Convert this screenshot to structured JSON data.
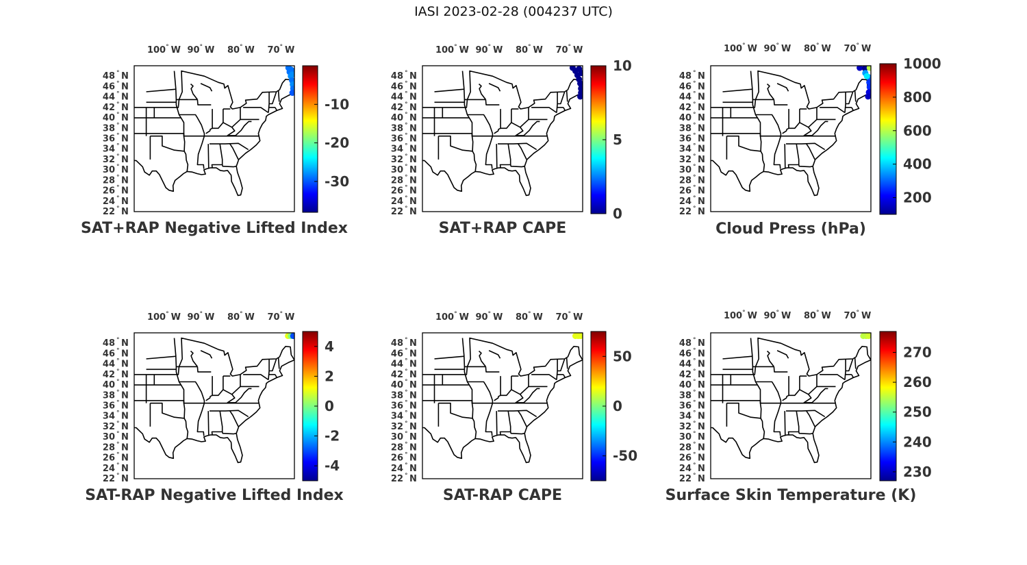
{
  "figure": {
    "title": "IASI 2023-02-28 (004237 UTC)"
  },
  "colormap": [
    "#00008f",
    "#0000ff",
    "#0080ff",
    "#00ffff",
    "#80ff80",
    "#ffff00",
    "#ff8000",
    "#ff0000",
    "#800000"
  ],
  "lon_ticks": [
    "100",
    "90",
    "80",
    "70"
  ],
  "lat_ticks": [
    "48",
    "46",
    "44",
    "42",
    "40",
    "38",
    "36",
    "34",
    "32",
    "30",
    "28",
    "26",
    "24",
    "22"
  ],
  "deg_symbol": "°",
  "lon_suffix": "W",
  "lat_suffix": "N",
  "chart_data": [
    {
      "type": "scatter",
      "title": "SAT+RAP Negative Lifted Index",
      "xlim": [
        -107,
        -67
      ],
      "ylim": [
        22,
        50
      ],
      "clim": [
        -38,
        0
      ],
      "colorbar_ticks": [
        -10,
        -20,
        -30
      ],
      "points": [
        {
          "lon": -68.5,
          "lat": 49.6,
          "value": -29
        },
        {
          "lon": -68.2,
          "lat": 48.8,
          "value": -29
        },
        {
          "lon": -67.9,
          "lat": 48.0,
          "value": -28
        },
        {
          "lon": -67.6,
          "lat": 47.2,
          "value": -29
        },
        {
          "lon": -67.4,
          "lat": 46.4,
          "value": -28
        },
        {
          "lon": -67.3,
          "lat": 45.6,
          "value": -29
        },
        {
          "lon": -67.5,
          "lat": 44.8,
          "value": -30
        },
        {
          "lon": -67.9,
          "lat": 49.3,
          "value": -29
        },
        {
          "lon": -67.4,
          "lat": 49.0,
          "value": -29
        },
        {
          "lon": -67.6,
          "lat": 48.3,
          "value": -28
        }
      ]
    },
    {
      "type": "scatter",
      "title": "SAT+RAP CAPE",
      "xlim": [
        -107,
        -67
      ],
      "ylim": [
        22,
        50
      ],
      "clim": [
        0,
        10
      ],
      "colorbar_ticks": [
        10,
        5,
        0
      ],
      "points": [
        {
          "lon": -69.5,
          "lat": 49.6,
          "value": 0
        },
        {
          "lon": -68.8,
          "lat": 49.0,
          "value": 0
        },
        {
          "lon": -68.3,
          "lat": 48.2,
          "value": 0
        },
        {
          "lon": -67.9,
          "lat": 47.4,
          "value": 0
        },
        {
          "lon": -67.6,
          "lat": 46.6,
          "value": 0
        },
        {
          "lon": -67.4,
          "lat": 45.6,
          "value": 0
        },
        {
          "lon": -67.4,
          "lat": 44.8,
          "value": 0
        },
        {
          "lon": -67.6,
          "lat": 44.1,
          "value": 0
        },
        {
          "lon": -67.9,
          "lat": 49.4,
          "value": 0
        },
        {
          "lon": -67.3,
          "lat": 48.6,
          "value": 0
        }
      ]
    },
    {
      "type": "scatter",
      "title": "Cloud Press (hPa)",
      "xlim": [
        -107,
        -67
      ],
      "ylim": [
        22,
        50
      ],
      "clim": [
        100,
        1000
      ],
      "colorbar_ticks": [
        1000,
        800,
        600,
        400,
        200
      ],
      "points": [
        {
          "lon": -69.8,
          "lat": 49.6,
          "value": 150
        },
        {
          "lon": -68.5,
          "lat": 49.5,
          "value": 100
        },
        {
          "lon": -67.3,
          "lat": 49.6,
          "value": 600
        },
        {
          "lon": -68.4,
          "lat": 48.6,
          "value": 350
        },
        {
          "lon": -67.6,
          "lat": 47.8,
          "value": 300
        },
        {
          "lon": -67.4,
          "lat": 46.8,
          "value": 260
        },
        {
          "lon": -67.3,
          "lat": 45.9,
          "value": 250
        },
        {
          "lon": -67.5,
          "lat": 44.9,
          "value": 180
        },
        {
          "lon": -67.7,
          "lat": 44.1,
          "value": 150
        },
        {
          "lon": -68.0,
          "lat": 48.0,
          "value": 420
        }
      ]
    },
    {
      "type": "scatter",
      "title": "SAT-RAP Negative Lifted Index",
      "xlim": [
        -107,
        -67
      ],
      "ylim": [
        22,
        50
      ],
      "clim": [
        -5,
        5
      ],
      "colorbar_ticks": [
        4,
        2,
        0,
        -2,
        -4
      ],
      "points": [
        {
          "lon": -68.6,
          "lat": 49.4,
          "value": 1
        },
        {
          "lon": -67.9,
          "lat": 49.4,
          "value": 0
        },
        {
          "lon": -67.3,
          "lat": 49.4,
          "value": -3
        }
      ]
    },
    {
      "type": "scatter",
      "title": "SAT-RAP CAPE",
      "xlim": [
        -107,
        -67
      ],
      "ylim": [
        22,
        50
      ],
      "clim": [
        -75,
        75
      ],
      "colorbar_ticks": [
        50,
        0,
        -50
      ],
      "points": [
        {
          "lon": -68.8,
          "lat": 49.4,
          "value": 15
        },
        {
          "lon": -68.1,
          "lat": 49.4,
          "value": 15
        },
        {
          "lon": -67.5,
          "lat": 49.4,
          "value": 15
        }
      ]
    },
    {
      "type": "scatter",
      "title": "Surface Skin Temperature (K)",
      "xlim": [
        -107,
        -67
      ],
      "ylim": [
        22,
        50
      ],
      "clim": [
        227,
        277
      ],
      "colorbar_ticks": [
        270,
        260,
        250,
        240,
        230
      ],
      "points": [
        {
          "lon": -68.9,
          "lat": 49.4,
          "value": 255
        },
        {
          "lon": -68.2,
          "lat": 49.4,
          "value": 255
        },
        {
          "lon": -67.6,
          "lat": 49.4,
          "value": 256
        }
      ]
    }
  ]
}
